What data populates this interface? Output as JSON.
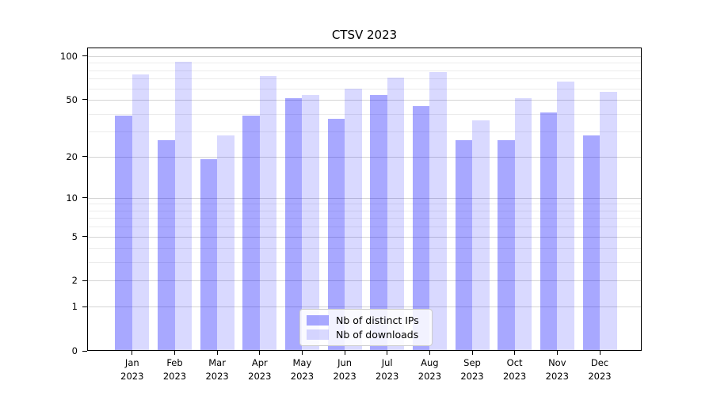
{
  "chart_data": {
    "type": "bar",
    "title": "CTSV 2023",
    "categories": [
      {
        "month": "Jan",
        "year": "2023"
      },
      {
        "month": "Feb",
        "year": "2023"
      },
      {
        "month": "Mar",
        "year": "2023"
      },
      {
        "month": "Apr",
        "year": "2023"
      },
      {
        "month": "May",
        "year": "2023"
      },
      {
        "month": "Jun",
        "year": "2023"
      },
      {
        "month": "Jul",
        "year": "2023"
      },
      {
        "month": "Aug",
        "year": "2023"
      },
      {
        "month": "Sep",
        "year": "2023"
      },
      {
        "month": "Oct",
        "year": "2023"
      },
      {
        "month": "Nov",
        "year": "2023"
      },
      {
        "month": "Dec",
        "year": "2023"
      }
    ],
    "series": [
      {
        "name": "Nb of distinct IPs",
        "color": "rgba(0,0,255,0.34)",
        "values": [
          39,
          26,
          19,
          39,
          51,
          37,
          54,
          45,
          26,
          26,
          41,
          28
        ]
      },
      {
        "name": "Nb of downloads",
        "color": "rgba(0,0,255,0.15)",
        "values": [
          75,
          92,
          28,
          73,
          54,
          60,
          71,
          78,
          36,
          51,
          67,
          57
        ]
      }
    ],
    "yscale": "log1p",
    "ylim": [
      0,
      115
    ],
    "y_axis": {
      "major_ticks": [
        100,
        50,
        20,
        10,
        5,
        2,
        1,
        0
      ],
      "minor_gridlines": [
        3,
        4,
        6,
        7,
        8,
        9,
        30,
        40,
        60,
        70,
        80,
        90
      ]
    },
    "grid": true,
    "legend_position": "lower center",
    "colors": {
      "bar_dark": "rgba(0,0,255,0.34)",
      "bar_light": "rgba(0,0,255,0.15)",
      "grid_major": "#d4d4d4",
      "grid_minor": "#ececec"
    }
  }
}
